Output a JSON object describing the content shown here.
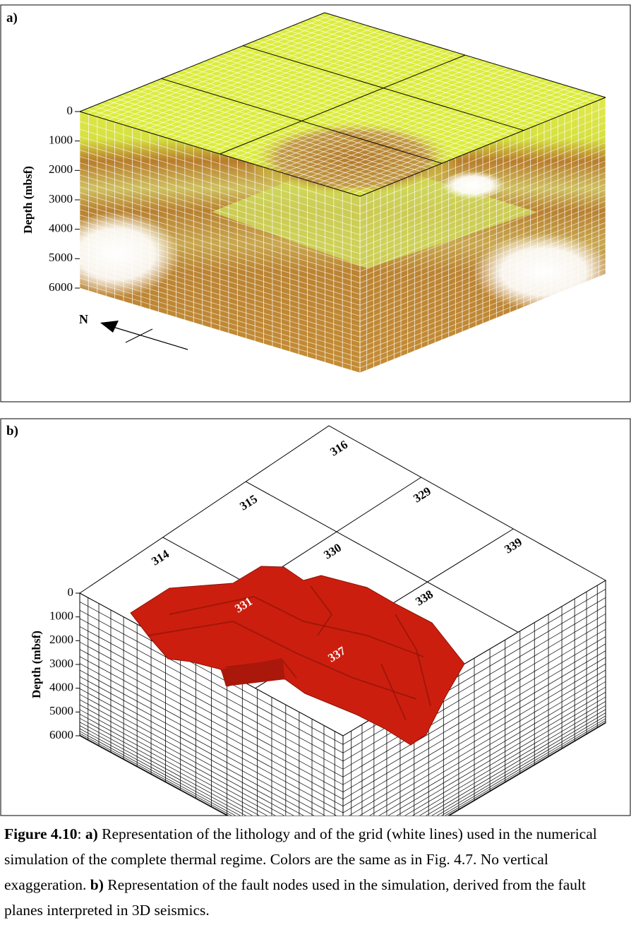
{
  "panel_a": {
    "label": "a)",
    "depth_axis": {
      "label": "Depth (mbsf)",
      "ticks": [
        0,
        1000,
        2000,
        3000,
        4000,
        5000,
        6000
      ]
    },
    "north_label": "N"
  },
  "panel_b": {
    "label": "b)",
    "depth_axis": {
      "label": "Depth (mbsf)",
      "ticks": [
        0,
        1000,
        2000,
        3000,
        4000,
        5000,
        6000
      ]
    },
    "block_labels": [
      "314",
      "315",
      "316",
      "330",
      "329",
      "339",
      "331",
      "337",
      "338"
    ]
  },
  "caption": {
    "segments": [
      {
        "text": "Figure 4.10",
        "bold": true
      },
      {
        "text": ": "
      },
      {
        "text": "a)",
        "bold": true
      },
      {
        "text": " Representation of the lithology and of the grid (white lines) used in the numerical simulation of the complete thermal regime. Colors are the same as in Fig. 4.7. No vertical exaggeration. "
      },
      {
        "text": "b)",
        "bold": true
      },
      {
        "text": " Representation of the fault nodes used in the simulation, derived from the fault planes interpreted in 3D seismics."
      }
    ]
  }
}
